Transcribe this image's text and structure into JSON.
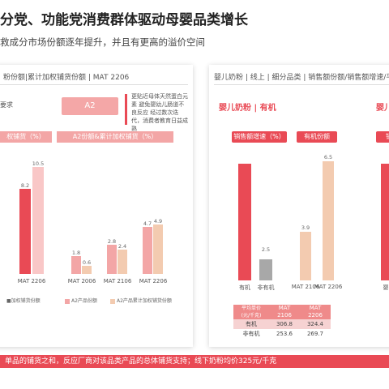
{
  "title": "分党、功能党消费群体驱动母婴品类增长",
  "subtitle": "救成分市场份额逐年提升，并且有更高的溢价空间",
  "left_panel": {
    "heading": "粉份额|累计加权铺货份额 | MAT 2206",
    "note_req": "要求",
    "tag": "A2",
    "note": "更贴近母体天然蛋白元素 避免婴幼儿肠道不良反应 经过数次迭代，消费者教育日益成熟",
    "chart1_header": "权铺货（%）",
    "chart2_header": "A2份额&累计加权铺货（%）",
    "legend1": "■加权铺货份额",
    "legend2a": "A2产品份额",
    "legend2b": "A2产品累计加权铺货份额"
  },
  "right_panel": {
    "heading": "婴儿奶粉 | 线上 | 细分品类 | 销售额份额/销售额增速/平",
    "sub_title": "婴儿奶粉 | 有机",
    "sub_title2": "婴儿",
    "hdr_growth": "销售额增速（%）",
    "hdr_share": "有机份额",
    "hdr_partial": "销售",
    "x_organic": "有机",
    "x_nonorganic": "非有机",
    "x_extra": "婴",
    "table": {
      "header": [
        "平均单价 (元/千克)",
        "MAT 2106",
        "MAT 2206"
      ],
      "rows": [
        [
          "有机",
          "306.8",
          "324.4"
        ],
        [
          "非有机",
          "253.6",
          "269.7"
        ]
      ]
    }
  },
  "footer": "单品的铺货之和，反应厂商对该品类产品的总体铺货支持；线下奶粉均价325元/千克",
  "chart_data": [
    {
      "type": "bar",
      "title": "权铺货（%）",
      "categories": [
        "MAT 2206"
      ],
      "series": [
        {
          "values": [
            8.2
          ]
        },
        {
          "values": [
            10.5
          ]
        }
      ]
    },
    {
      "type": "bar",
      "title": "A2份额&累计加权铺货（%）",
      "categories": [
        "MAT 2006",
        "MAT 2106",
        "MAT 2206"
      ],
      "series": [
        {
          "name": "A2产品份额",
          "values": [
            1.8,
            2.8,
            4.7
          ]
        },
        {
          "name": "A2产品累计加权铺货份额",
          "values": [
            0.6,
            2.4,
            4.9
          ]
        }
      ]
    },
    {
      "type": "bar",
      "title": "销售额增速（%）",
      "categories": [
        "有机",
        "非有机"
      ],
      "values": [
        null,
        2.5
      ]
    },
    {
      "type": "bar",
      "title": "有机份额",
      "categories": [
        "MAT 2106",
        "MAT 2206"
      ],
      "values": [
        3.9,
        6.5
      ]
    }
  ],
  "colors": {
    "accent": "#e94a55",
    "pink_light": "#f9c7c7",
    "peach": "#f3cbb0",
    "gray": "#a8a8a8"
  }
}
